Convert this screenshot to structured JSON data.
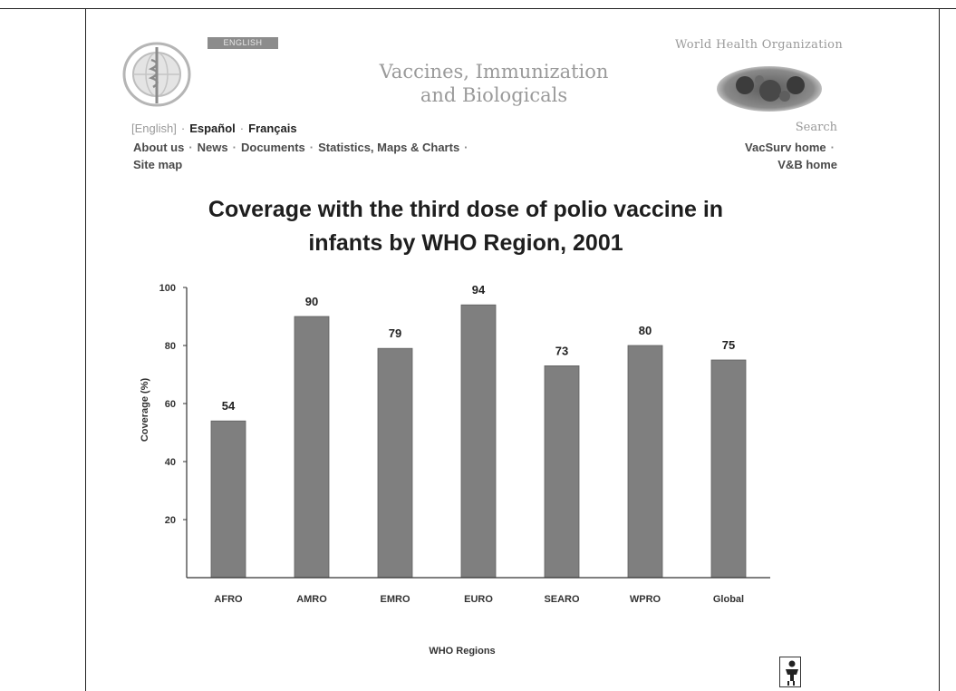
{
  "header": {
    "badge": "ENGLISH",
    "site_title_line1": "Vaccines, Immunization",
    "site_title_line2": "and Biologicals",
    "org_name": "World Health Organization"
  },
  "languages": {
    "current": "[English]",
    "es": "Español",
    "fr": "Français"
  },
  "nav": {
    "about": "About us",
    "news": "News",
    "documents": "Documents",
    "stats": "Statistics, Maps & Charts",
    "sitemap": "Site map",
    "search": "Search",
    "vacsurv": "VacSurv home",
    "vb": "V&B home"
  },
  "chart_data": {
    "type": "bar",
    "title_line1": "Coverage with the third dose of polio vaccine in",
    "title_line2": "infants by WHO Region, 2001",
    "categories": [
      "AFRO",
      "AMRO",
      "EMRO",
      "EURO",
      "SEARO",
      "WPRO",
      "Global"
    ],
    "values": [
      54,
      90,
      79,
      94,
      73,
      80,
      75
    ],
    "value_labels": [
      "54",
      "90",
      "79",
      "94",
      "73",
      "80",
      "75"
    ],
    "xlabel": "WHO Regions",
    "ylabel": "Coverage (%)",
    "ylim": [
      0,
      100
    ],
    "yticks": [
      20,
      40,
      60,
      80,
      100
    ],
    "bar_color": "#7f7f7f",
    "grid": false,
    "legend": "none"
  }
}
